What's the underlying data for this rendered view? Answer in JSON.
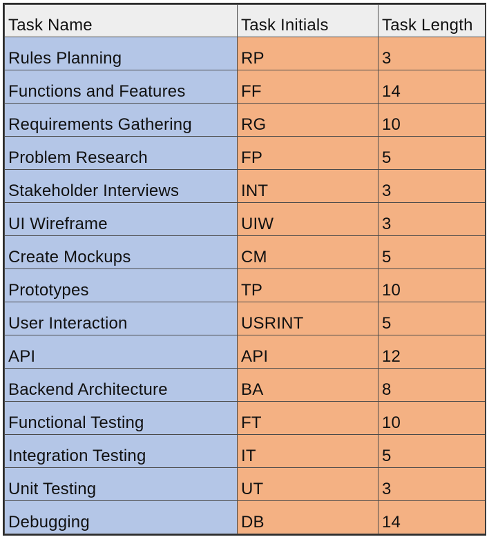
{
  "table": {
    "headers": [
      "Task Name",
      "Task Initials",
      "Task Length"
    ],
    "rows": [
      {
        "name": "Rules Planning",
        "initials": "RP",
        "length": "3"
      },
      {
        "name": "Functions and Features",
        "initials": "FF",
        "length": "14"
      },
      {
        "name": "Requirements Gathering",
        "initials": "RG",
        "length": "10"
      },
      {
        "name": "Problem Research",
        "initials": "FP",
        "length": "5"
      },
      {
        "name": "Stakeholder Interviews",
        "initials": "INT",
        "length": "3"
      },
      {
        "name": "UI Wireframe",
        "initials": "UIW",
        "length": "3"
      },
      {
        "name": "Create Mockups",
        "initials": "CM",
        "length": "5"
      },
      {
        "name": "Prototypes",
        "initials": "TP",
        "length": "10"
      },
      {
        "name": "User Interaction",
        "initials": "USRINT",
        "length": "5"
      },
      {
        "name": "API",
        "initials": "API",
        "length": "12"
      },
      {
        "name": "Backend Architecture",
        "initials": "BA",
        "length": "8"
      },
      {
        "name": "Functional Testing",
        "initials": "FT",
        "length": "10"
      },
      {
        "name": "Integration Testing",
        "initials": "IT",
        "length": "5"
      },
      {
        "name": "Unit Testing",
        "initials": "UT",
        "length": "3"
      },
      {
        "name": "Debugging",
        "initials": "DB",
        "length": "14"
      }
    ]
  },
  "colors": {
    "header_bg": "#eeeeee",
    "name_col_bg": "#b4c6e7",
    "value_col_bg": "#f4b183",
    "border": "#4a4a4a"
  }
}
